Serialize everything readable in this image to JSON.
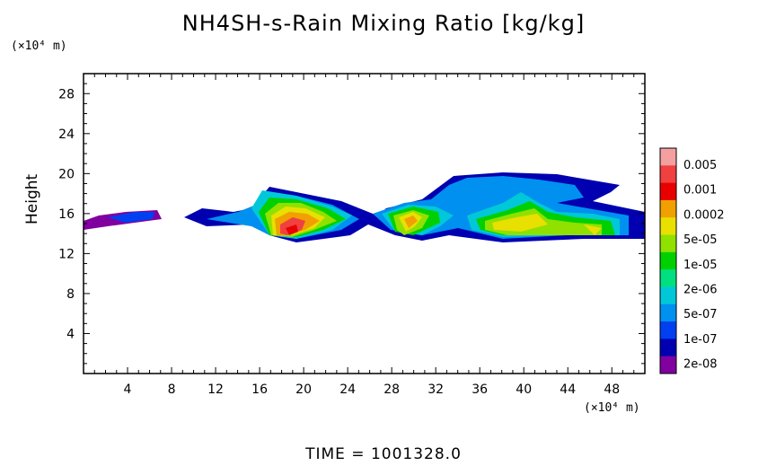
{
  "chart_data": {
    "type": "heatmap",
    "title": "NH4SH-s-Rain Mixing Ratio [kg/kg]",
    "ylabel": "Height",
    "xlabel": "",
    "x_unit": "(×10⁴ m)",
    "y_unit": "(×10⁴ m)",
    "xlim": [
      0,
      51
    ],
    "ylim": [
      0,
      30
    ],
    "x_ticks": [
      4,
      8,
      12,
      16,
      20,
      24,
      28,
      32,
      36,
      40,
      44,
      48
    ],
    "y_ticks": [
      4,
      8,
      12,
      16,
      20,
      24,
      28
    ],
    "colorbar": {
      "levels": [
        "0.005",
        "0.001",
        "0.0002",
        "5e-05",
        "1e-05",
        "2e-06",
        "5e-07",
        "1e-07",
        "2e-08"
      ],
      "colors": [
        "#f4a0a0",
        "#f04040",
        "#e80000",
        "#f0a000",
        "#e8e000",
        "#90e000",
        "#00d000",
        "#00e080",
        "#00c8d8",
        "#0090f0",
        "#0040f0",
        "#0000b0",
        "#8000a0"
      ]
    },
    "regions": [
      {
        "x": [
          0,
          51
        ],
        "y": [
          14,
          16.5
        ],
        "level": "2e-08"
      },
      {
        "x": [
          17,
          25
        ],
        "y": [
          13,
          19.5
        ],
        "level": "5e-05"
      },
      {
        "x": [
          18,
          22
        ],
        "y": [
          13.5,
          16
        ],
        "level": "0.001"
      },
      {
        "x": [
          27,
          32
        ],
        "y": [
          13,
          18
        ],
        "level": "0.0002"
      },
      {
        "x": [
          34,
          50
        ],
        "y": [
          17,
          20
        ],
        "level": "1e-07"
      },
      {
        "x": [
          35,
          48
        ],
        "y": [
          13.5,
          17
        ],
        "level": "1e-05"
      }
    ]
  },
  "footer": {
    "time_label": "TIME =",
    "time_value": "1001328.0"
  }
}
